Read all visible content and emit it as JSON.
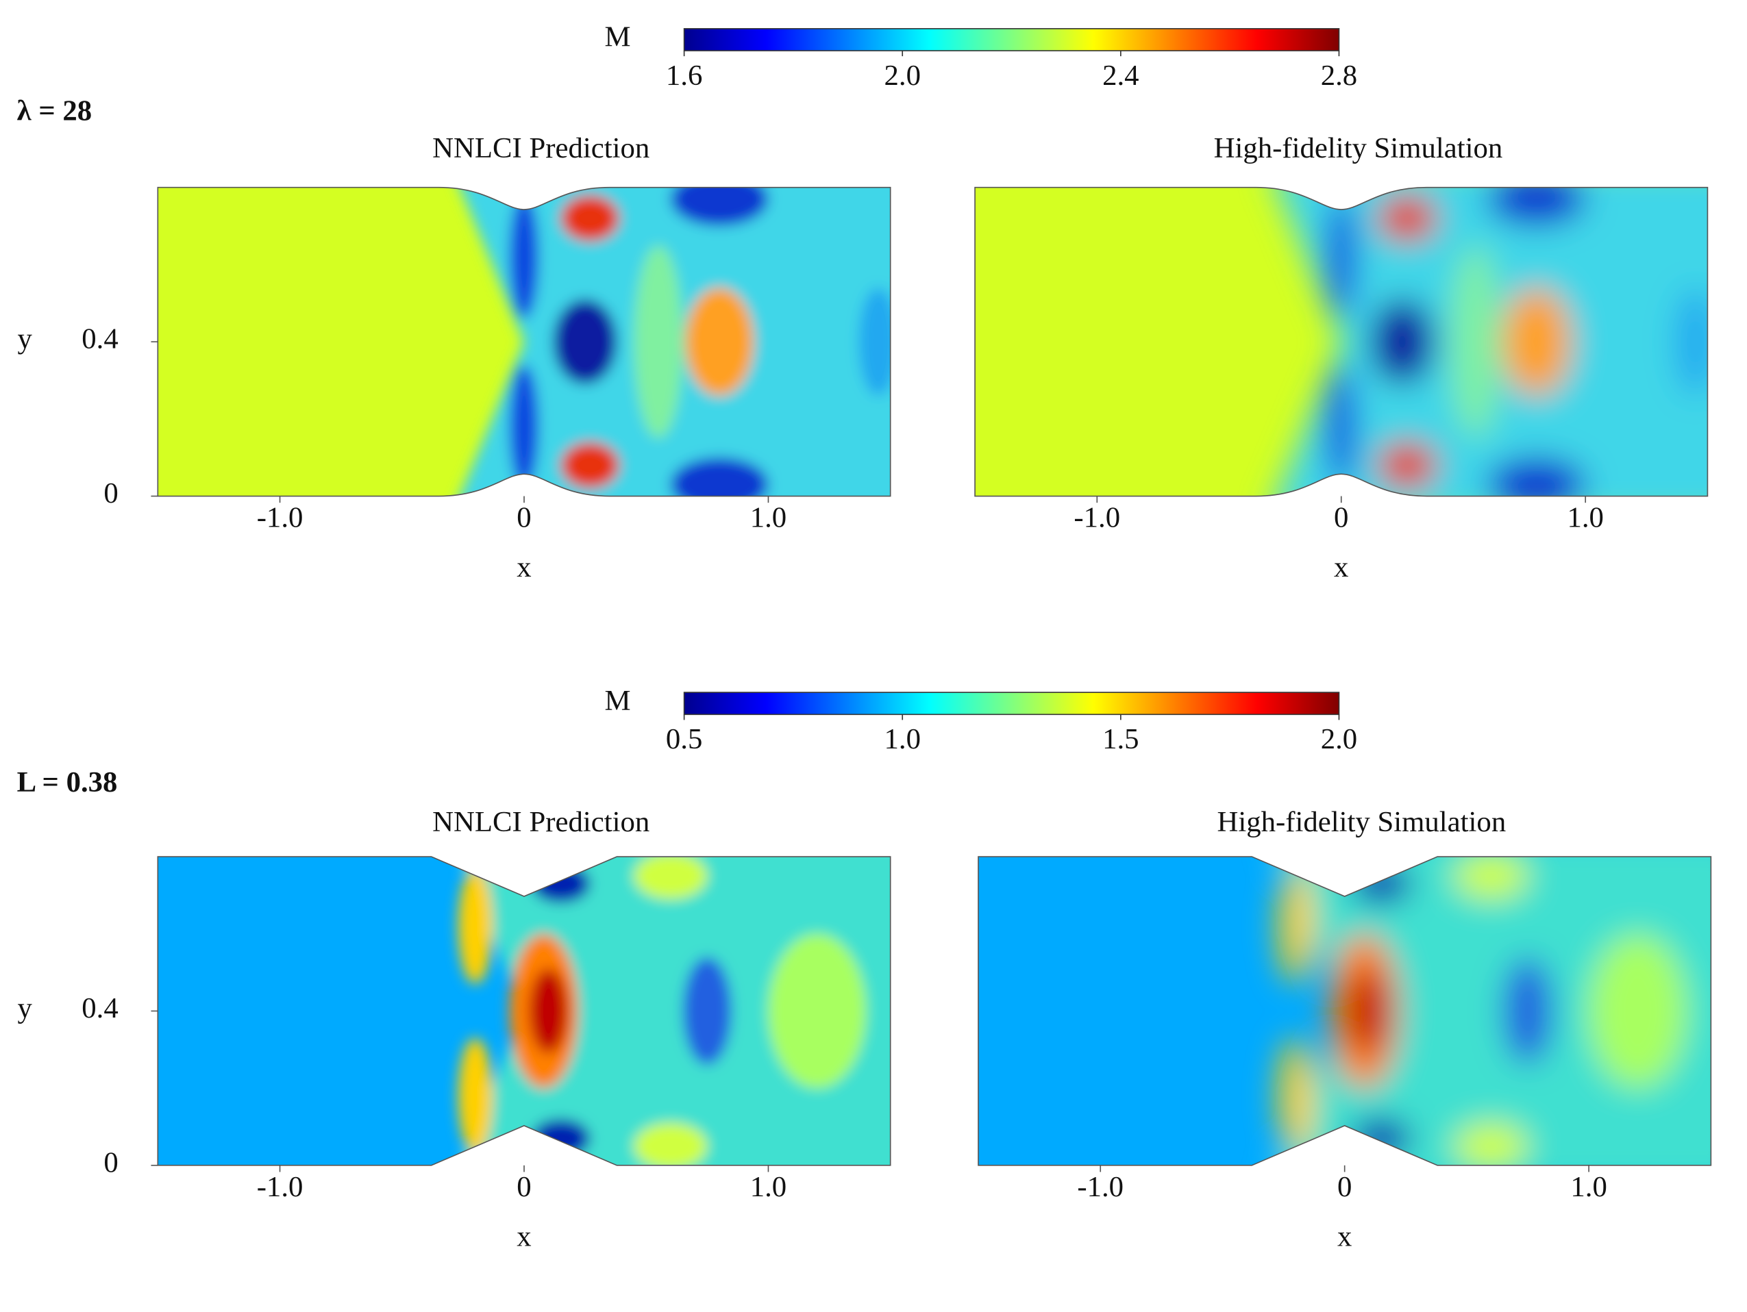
{
  "figures": [
    {
      "label": "λ = 28",
      "colorbar": {
        "label": "M",
        "lim": [
          1.6,
          2.8
        ],
        "ticks": [
          1.6,
          {
            "value": 2,
            "label": "2.0"
          },
          2.4,
          2.8
        ]
      },
      "panels": [
        {
          "title": "NNLCI Prediction",
          "xlabel": "x",
          "ylabel": "y",
          "xlim": [
            -1.5,
            1.5
          ],
          "ylim": [
            0,
            0.8
          ],
          "xticks": [
            {
              "value": -1,
              "label": "-1.0"
            },
            0,
            {
              "value": 1,
              "label": "1.0"
            }
          ],
          "yticks": [
            0,
            0.4
          ]
        },
        {
          "title": "High-fidelity Simulation",
          "xlabel": "x",
          "xlim": [
            -1.5,
            1.5
          ],
          "ylim": [
            0,
            0.8
          ],
          "xticks": [
            {
              "value": -1,
              "label": "-1.0"
            },
            0,
            {
              "value": 1,
              "label": "1.0"
            }
          ]
        }
      ]
    },
    {
      "label": "L = 0.38",
      "colorbar": {
        "label": "M",
        "lim": [
          0.5,
          2.0
        ],
        "ticks": [
          0.5,
          {
            "value": 1,
            "label": "1.0"
          },
          1.5,
          {
            "value": 2,
            "label": "2.0"
          }
        ]
      },
      "panels": [
        {
          "title": "NNLCI Prediction",
          "xlabel": "x",
          "ylabel": "y",
          "xlim": [
            -1.5,
            1.5
          ],
          "ylim": [
            0,
            0.8
          ],
          "xticks": [
            {
              "value": -1,
              "label": "-1.0"
            },
            0,
            {
              "value": 1,
              "label": "1.0"
            }
          ],
          "yticks": [
            0,
            0.4
          ]
        },
        {
          "title": "High-fidelity Simulation",
          "xlabel": "x",
          "xlim": [
            -1.5,
            1.5
          ],
          "ylim": [
            0,
            0.8
          ],
          "xticks": [
            {
              "value": -1,
              "label": "-1.0"
            },
            0,
            {
              "value": 1,
              "label": "1.0"
            }
          ]
        }
      ]
    }
  ]
}
